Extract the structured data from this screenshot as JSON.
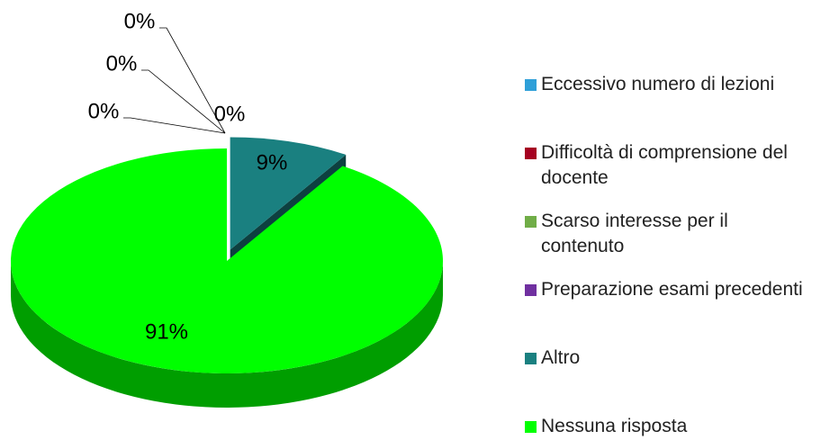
{
  "chart_data": {
    "type": "pie",
    "categories": [
      "Eccessivo numero di lezioni",
      "Difficoltà di comprensione del docente",
      "Scarso interesse per il contenuto",
      "Preparazione esami precedenti",
      "Altro",
      "Nessuna risposta"
    ],
    "values": [
      0,
      0,
      0,
      0,
      9,
      91
    ],
    "value_labels": [
      "0%",
      "0%",
      "0%",
      "0%",
      "9%",
      "91%"
    ],
    "colors": [
      "#2e9fd8",
      "#a50021",
      "#70ad47",
      "#7030a0",
      "#1a8080",
      "#00ff00"
    ],
    "legend": "right"
  }
}
